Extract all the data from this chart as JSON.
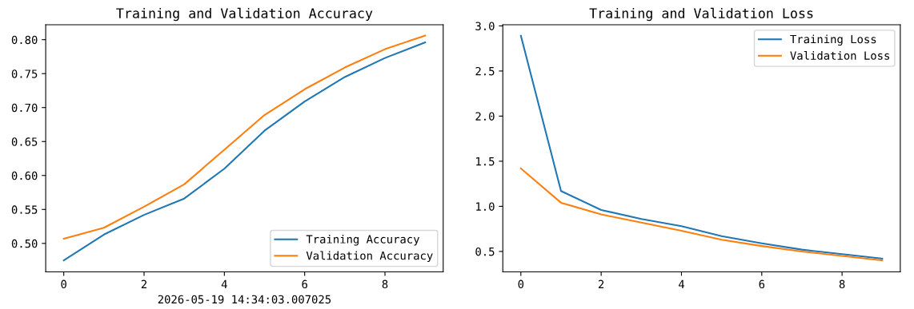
{
  "chart_data": [
    {
      "type": "line",
      "title": "Training and Validation Accuracy",
      "xlabel": "2026-05-19 14:34:03.007025",
      "x": [
        0,
        1,
        2,
        3,
        4,
        5,
        6,
        7,
        8,
        9
      ],
      "series": [
        {
          "name": "Training Accuracy",
          "color": "#1f77b4",
          "values": [
            0.475,
            0.513,
            0.542,
            0.566,
            0.61,
            0.666,
            0.709,
            0.745,
            0.773,
            0.796
          ]
        },
        {
          "name": "Validation Accuracy",
          "color": "#ff7f0e",
          "values": [
            0.507,
            0.523,
            0.554,
            0.587,
            0.638,
            0.689,
            0.727,
            0.759,
            0.786,
            0.806
          ]
        }
      ],
      "xlim": [
        -0.45,
        9.45
      ],
      "ylim": [
        0.458,
        0.822
      ],
      "xticks": [
        0,
        2,
        4,
        6,
        8
      ],
      "yticks": [
        {
          "value": 0.5,
          "label": "0.50"
        },
        {
          "value": 0.55,
          "label": "0.55"
        },
        {
          "value": 0.6,
          "label": "0.60"
        },
        {
          "value": 0.65,
          "label": "0.65"
        },
        {
          "value": 0.7,
          "label": "0.70"
        },
        {
          "value": 0.75,
          "label": "0.75"
        },
        {
          "value": 0.8,
          "label": "0.80"
        }
      ],
      "legend": "lower right",
      "grid": false
    },
    {
      "type": "line",
      "title": "Training and Validation Loss",
      "x": [
        0,
        1,
        2,
        3,
        4,
        5,
        6,
        7,
        8,
        9
      ],
      "series": [
        {
          "name": "Training Loss",
          "color": "#1f77b4",
          "values": [
            2.89,
            1.17,
            0.96,
            0.86,
            0.78,
            0.67,
            0.59,
            0.52,
            0.47,
            0.42
          ]
        },
        {
          "name": "Validation Loss",
          "color": "#ff7f0e",
          "values": [
            1.42,
            1.04,
            0.91,
            0.82,
            0.73,
            0.63,
            0.56,
            0.5,
            0.45,
            0.4
          ]
        }
      ],
      "xlim": [
        -0.45,
        9.45
      ],
      "ylim": [
        0.273,
        3.013
      ],
      "xticks": [
        0,
        2,
        4,
        6,
        8
      ],
      "yticks": [
        0.5,
        {
          "value": 1,
          "label": "1.0"
        },
        1.5,
        {
          "value": 2,
          "label": "2.0"
        },
        2.5,
        {
          "value": 3,
          "label": "3.0"
        }
      ],
      "legend": "upper right",
      "grid": false
    }
  ]
}
